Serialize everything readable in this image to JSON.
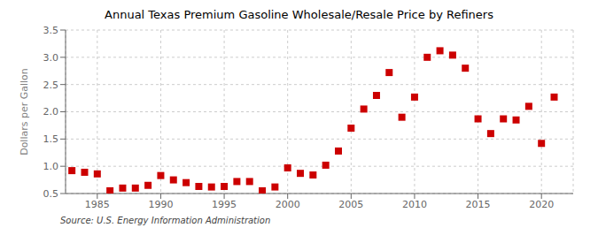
{
  "chart_data": {
    "type": "scatter",
    "title": "Annual Texas Premium Gasoline Wholesale/Resale Price by Refiners",
    "y_label": "Dollars per Gallon",
    "annotations": [
      "Source: U.S. Energy Information Administration"
    ],
    "x": [
      1983,
      1984,
      1985,
      1986,
      1987,
      1988,
      1989,
      1990,
      1991,
      1992,
      1993,
      1994,
      1995,
      1996,
      1997,
      1998,
      1999,
      2000,
      2001,
      2002,
      2003,
      2004,
      2005,
      2006,
      2007,
      2008,
      2009,
      2010,
      2011,
      2012,
      2013,
      2014,
      2015,
      2016,
      2017,
      2018,
      2019,
      2020,
      2021
    ],
    "values": [
      0.92,
      0.89,
      0.86,
      0.55,
      0.6,
      0.6,
      0.65,
      0.83,
      0.75,
      0.7,
      0.63,
      0.62,
      0.63,
      0.72,
      0.72,
      0.55,
      0.62,
      0.97,
      0.87,
      0.84,
      1.02,
      1.28,
      1.7,
      2.05,
      2.3,
      2.72,
      1.9,
      2.27,
      3.0,
      3.12,
      3.04,
      2.8,
      1.87,
      1.6,
      1.87,
      1.85,
      2.1,
      1.42,
      2.27
    ],
    "color": "#cc0000",
    "marker": "square",
    "xlim": [
      1982.5,
      2022.5
    ],
    "ylim": [
      0.5,
      3.5
    ],
    "xticks": [
      1985,
      1990,
      1995,
      2000,
      2005,
      2010,
      2015,
      2020
    ],
    "yticks": [
      0.5,
      {
        "value": 1.0,
        "label": "1.0"
      },
      1.5,
      {
        "value": 2.0,
        "label": "2.0"
      },
      2.5,
      {
        "value": 3.0,
        "label": "3.0"
      },
      3.5
    ],
    "grid": true
  }
}
